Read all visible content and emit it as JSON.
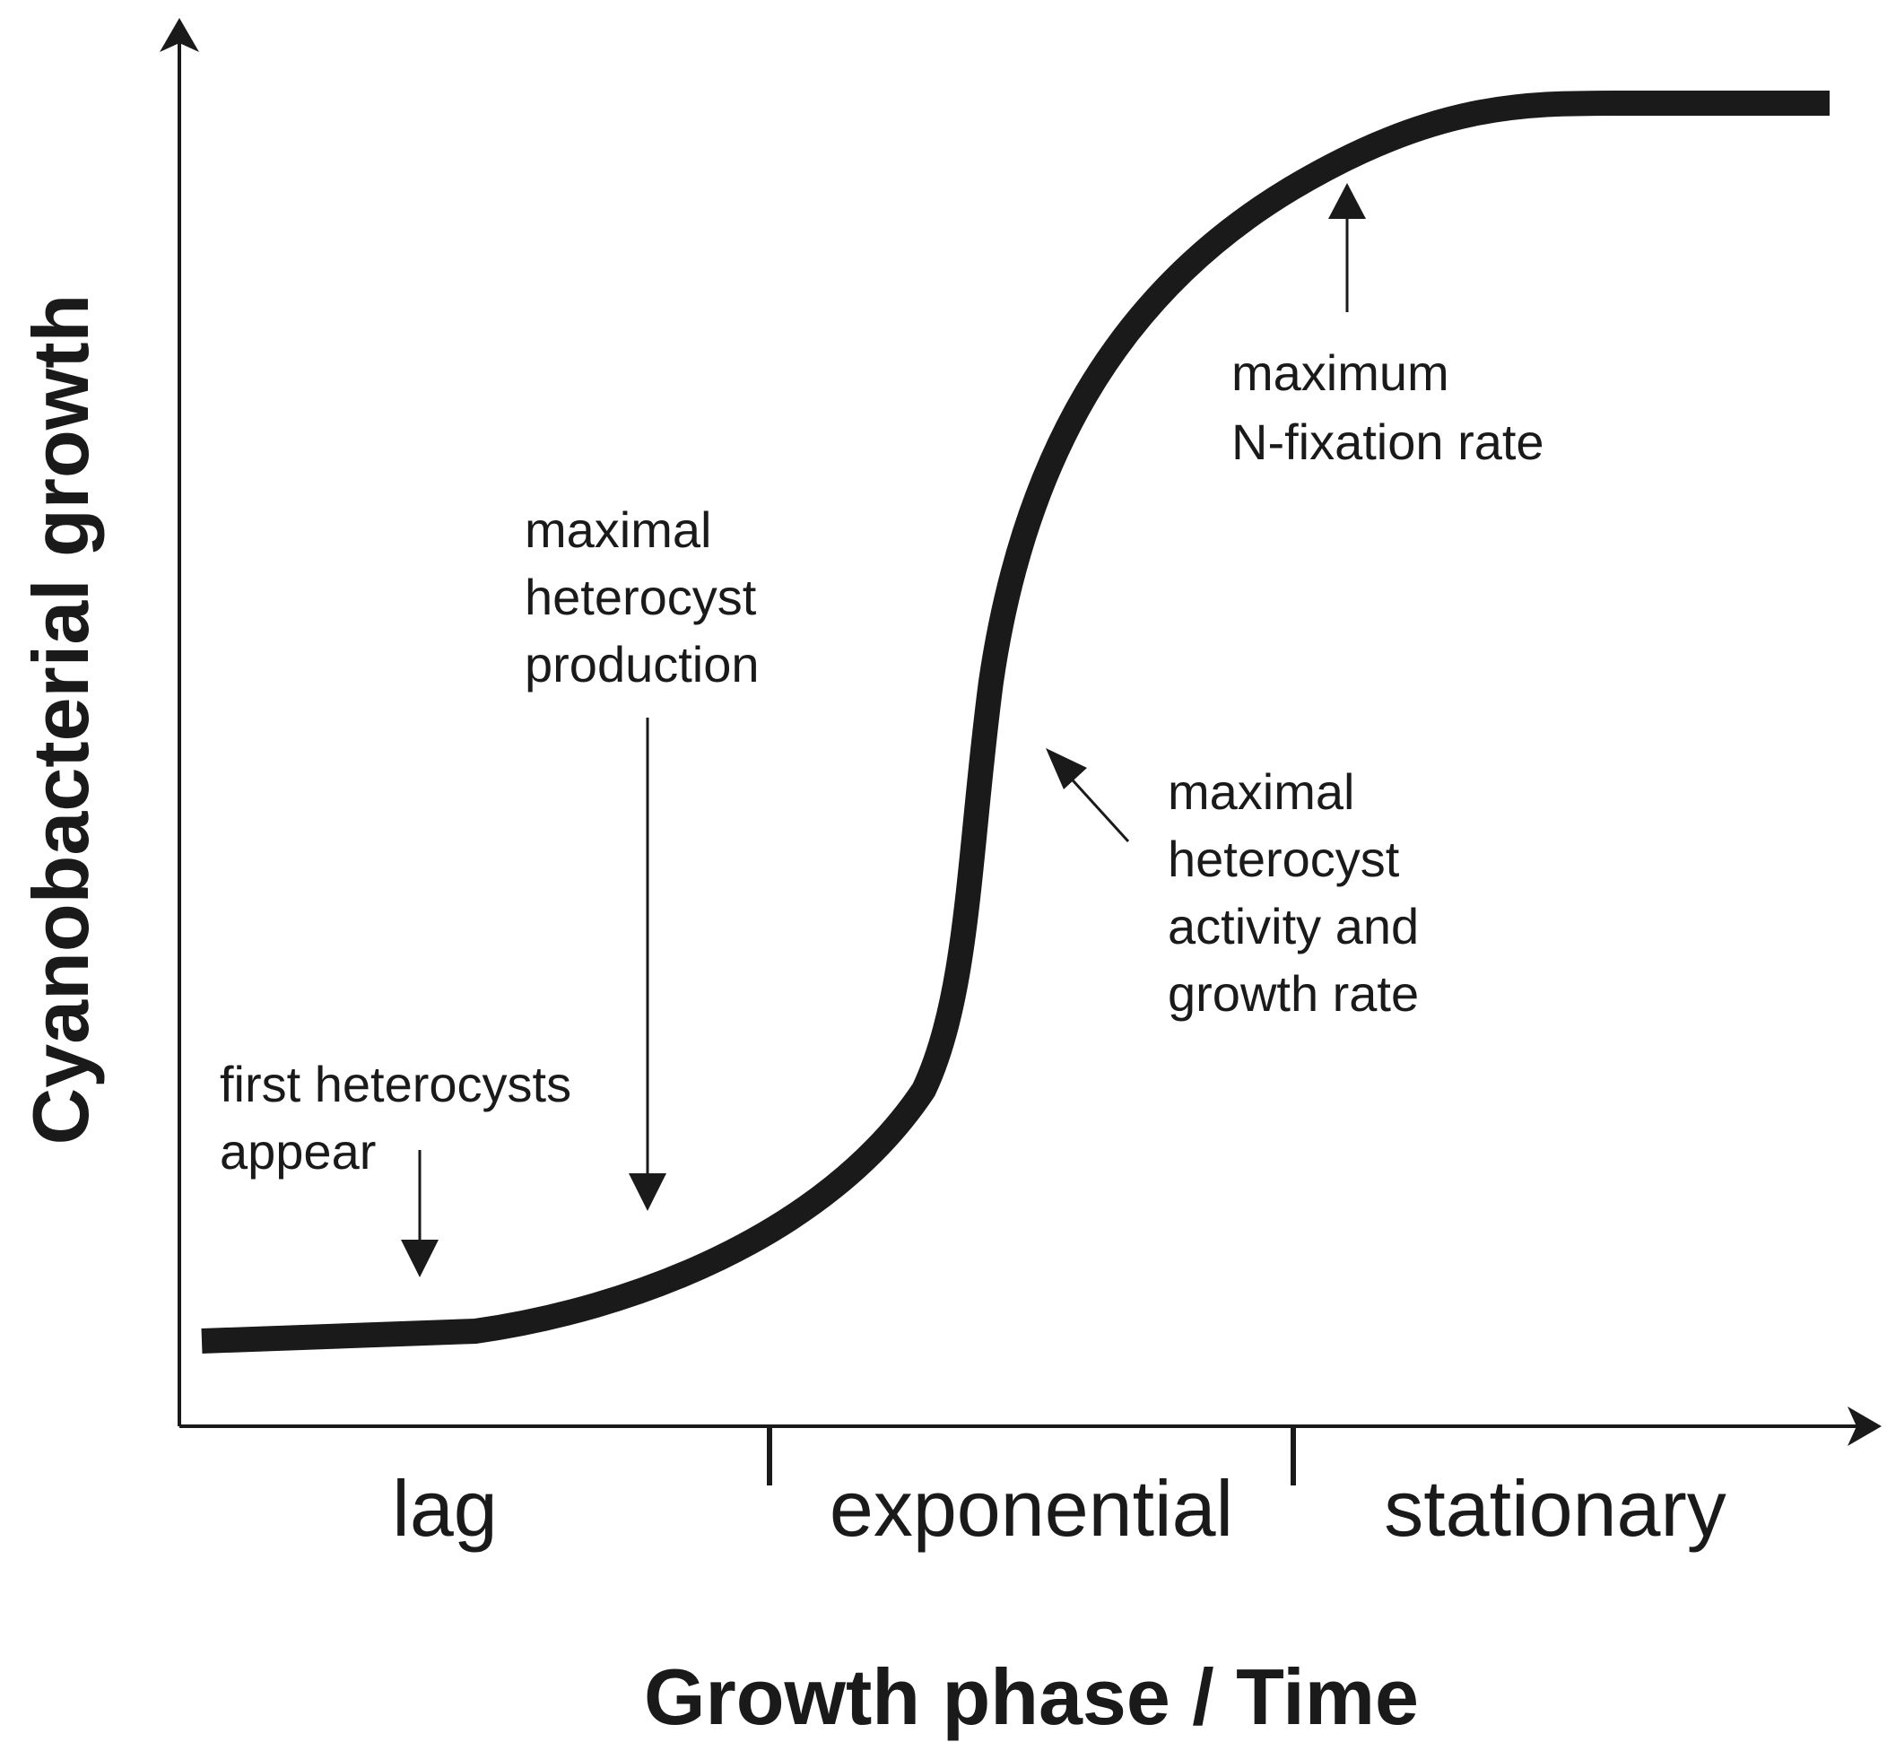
{
  "axes": {
    "x_title": "Growth phase / Time",
    "y_title": "Cyanobacterial growth"
  },
  "phases": [
    {
      "label": "lag"
    },
    {
      "label": "exponential"
    },
    {
      "label": "stationary"
    }
  ],
  "annotations": {
    "first_heterocysts": [
      "first heterocysts",
      "appear"
    ],
    "heterocyst_production": [
      "maximal",
      "heterocyst",
      "production"
    ],
    "heterocyst_activity": [
      "maximal",
      "heterocyst",
      "activity and",
      "growth rate"
    ],
    "n_fixation": [
      "maximum",
      "N-fixation rate"
    ]
  }
}
